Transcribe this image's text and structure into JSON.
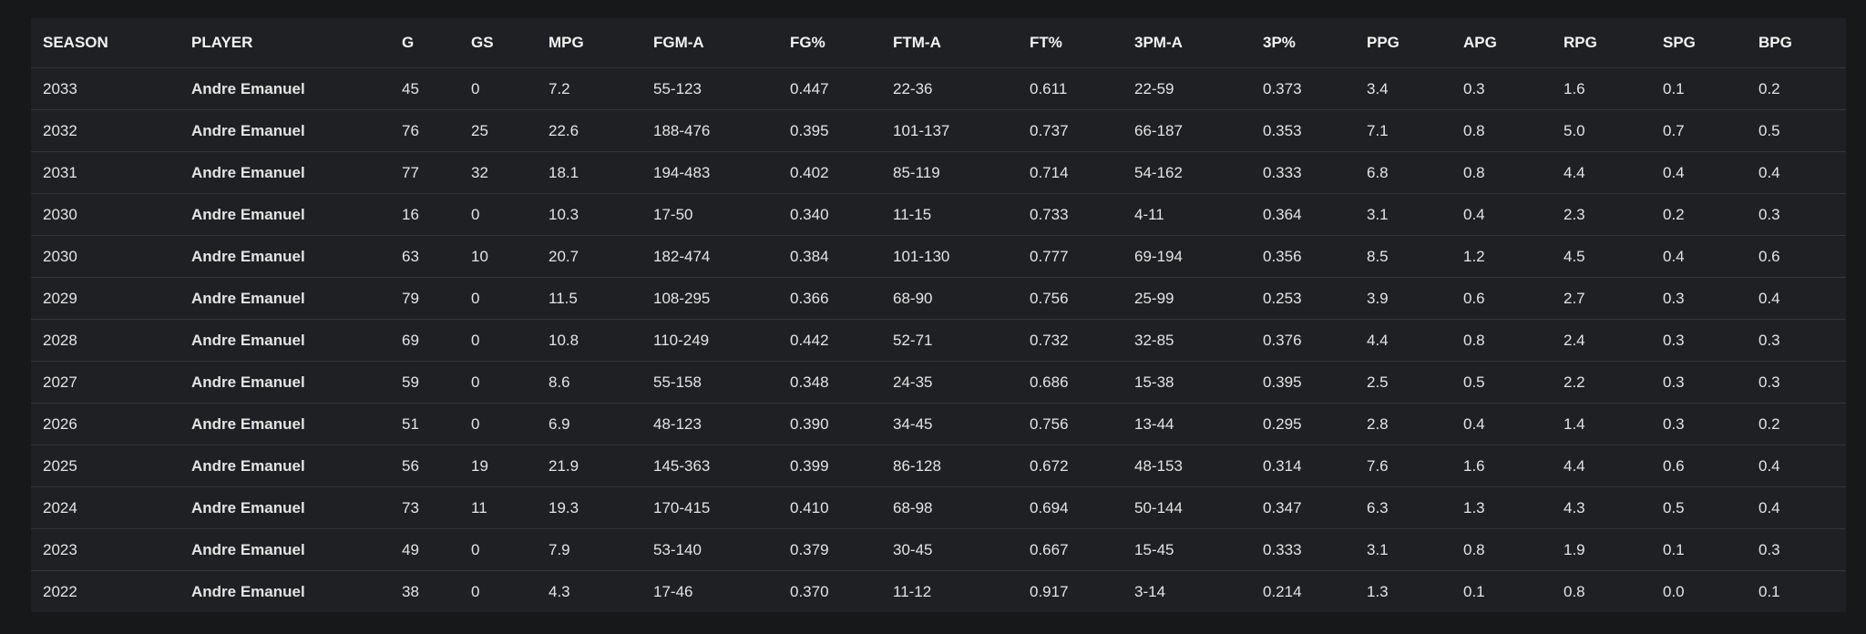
{
  "table": {
    "columns": [
      "SEASON",
      "PLAYER",
      "G",
      "GS",
      "MPG",
      "FGM-A",
      "FG%",
      "FTM-A",
      "FT%",
      "3PM-A",
      "3P%",
      "PPG",
      "APG",
      "RPG",
      "SPG",
      "BPG"
    ],
    "rows": [
      [
        "2033",
        "Andre Emanuel",
        "45",
        "0",
        "7.2",
        "55-123",
        "0.447",
        "22-36",
        "0.611",
        "22-59",
        "0.373",
        "3.4",
        "0.3",
        "1.6",
        "0.1",
        "0.2"
      ],
      [
        "2032",
        "Andre Emanuel",
        "76",
        "25",
        "22.6",
        "188-476",
        "0.395",
        "101-137",
        "0.737",
        "66-187",
        "0.353",
        "7.1",
        "0.8",
        "5.0",
        "0.7",
        "0.5"
      ],
      [
        "2031",
        "Andre Emanuel",
        "77",
        "32",
        "18.1",
        "194-483",
        "0.402",
        "85-119",
        "0.714",
        "54-162",
        "0.333",
        "6.8",
        "0.8",
        "4.4",
        "0.4",
        "0.4"
      ],
      [
        "2030",
        "Andre Emanuel",
        "16",
        "0",
        "10.3",
        "17-50",
        "0.340",
        "11-15",
        "0.733",
        "4-11",
        "0.364",
        "3.1",
        "0.4",
        "2.3",
        "0.2",
        "0.3"
      ],
      [
        "2030",
        "Andre Emanuel",
        "63",
        "10",
        "20.7",
        "182-474",
        "0.384",
        "101-130",
        "0.777",
        "69-194",
        "0.356",
        "8.5",
        "1.2",
        "4.5",
        "0.4",
        "0.6"
      ],
      [
        "2029",
        "Andre Emanuel",
        "79",
        "0",
        "11.5",
        "108-295",
        "0.366",
        "68-90",
        "0.756",
        "25-99",
        "0.253",
        "3.9",
        "0.6",
        "2.7",
        "0.3",
        "0.4"
      ],
      [
        "2028",
        "Andre Emanuel",
        "69",
        "0",
        "10.8",
        "110-249",
        "0.442",
        "52-71",
        "0.732",
        "32-85",
        "0.376",
        "4.4",
        "0.8",
        "2.4",
        "0.3",
        "0.3"
      ],
      [
        "2027",
        "Andre Emanuel",
        "59",
        "0",
        "8.6",
        "55-158",
        "0.348",
        "24-35",
        "0.686",
        "15-38",
        "0.395",
        "2.5",
        "0.5",
        "2.2",
        "0.3",
        "0.3"
      ],
      [
        "2026",
        "Andre Emanuel",
        "51",
        "0",
        "6.9",
        "48-123",
        "0.390",
        "34-45",
        "0.756",
        "13-44",
        "0.295",
        "2.8",
        "0.4",
        "1.4",
        "0.3",
        "0.2"
      ],
      [
        "2025",
        "Andre Emanuel",
        "56",
        "19",
        "21.9",
        "145-363",
        "0.399",
        "86-128",
        "0.672",
        "48-153",
        "0.314",
        "7.6",
        "1.6",
        "4.4",
        "0.6",
        "0.4"
      ],
      [
        "2024",
        "Andre Emanuel",
        "73",
        "11",
        "19.3",
        "170-415",
        "0.410",
        "68-98",
        "0.694",
        "50-144",
        "0.347",
        "6.3",
        "1.3",
        "4.3",
        "0.5",
        "0.4"
      ],
      [
        "2023",
        "Andre Emanuel",
        "49",
        "0",
        "7.9",
        "53-140",
        "0.379",
        "30-45",
        "0.667",
        "15-45",
        "0.333",
        "3.1",
        "0.8",
        "1.9",
        "0.1",
        "0.3"
      ],
      [
        "2022",
        "Andre Emanuel",
        "38",
        "0",
        "4.3",
        "17-46",
        "0.370",
        "11-12",
        "0.917",
        "3-14",
        "0.214",
        "1.3",
        "0.1",
        "0.8",
        "0.0",
        "0.1"
      ]
    ]
  }
}
